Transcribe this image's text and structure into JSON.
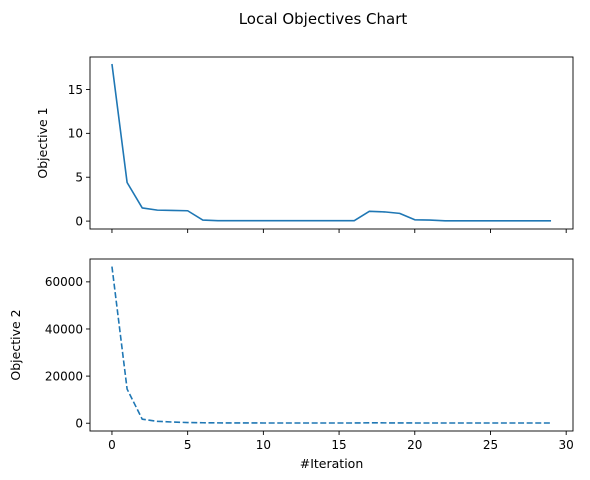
{
  "figure": {
    "title": "Local Objectives Chart"
  },
  "chart_data": [
    {
      "type": "line",
      "ylabel": "Objective 1",
      "xlabel": "",
      "xlim": [
        -1.45,
        30.45
      ],
      "ylim": [
        -0.9,
        18.7
      ],
      "x_ticks": [
        0,
        5,
        10,
        15,
        20,
        25,
        30
      ],
      "x_ticklabels_visible": false,
      "y_ticks": [
        0,
        5,
        10,
        15
      ],
      "y_ticklabels": [
        "0",
        "5",
        "10",
        "15"
      ],
      "line_style": "solid",
      "color": "#1f77b4",
      "grid": false,
      "x": [
        0,
        1,
        2,
        3,
        4,
        5,
        6,
        7,
        8,
        9,
        10,
        11,
        12,
        13,
        14,
        15,
        16,
        17,
        18,
        19,
        20,
        21,
        22,
        23,
        24,
        25,
        26,
        27,
        28,
        29
      ],
      "values": [
        17.9,
        4.4,
        1.5,
        1.25,
        1.22,
        1.18,
        0.12,
        0.05,
        0.05,
        0.05,
        0.05,
        0.05,
        0.05,
        0.05,
        0.05,
        0.05,
        0.05,
        1.12,
        1.05,
        0.88,
        0.15,
        0.12,
        0.03,
        0.03,
        0.03,
        0.03,
        0.03,
        0.03,
        0.03,
        0.03
      ]
    },
    {
      "type": "line",
      "ylabel": "Objective 2",
      "xlabel": "#Iteration",
      "xlim": [
        -1.45,
        30.45
      ],
      "ylim": [
        -3300,
        69700
      ],
      "x_ticks": [
        0,
        5,
        10,
        15,
        20,
        25,
        30
      ],
      "x_ticklabels": [
        "0",
        "5",
        "10",
        "15",
        "20",
        "25",
        "30"
      ],
      "y_ticks": [
        0,
        20000,
        40000,
        60000
      ],
      "y_ticklabels": [
        "0",
        "20000",
        "40000",
        "60000"
      ],
      "line_style": "dashed",
      "color": "#1f77b4",
      "grid": false,
      "x": [
        0,
        1,
        2,
        3,
        4,
        5,
        6,
        7,
        8,
        9,
        10,
        11,
        12,
        13,
        14,
        15,
        16,
        17,
        18,
        19,
        20,
        21,
        22,
        23,
        24,
        25,
        26,
        27,
        28,
        29
      ],
      "values": [
        66500,
        14500,
        1700,
        800,
        500,
        300,
        200,
        150,
        120,
        110,
        100,
        100,
        100,
        100,
        100,
        100,
        100,
        180,
        150,
        120,
        100,
        100,
        100,
        100,
        100,
        100,
        100,
        100,
        100,
        100
      ]
    }
  ]
}
